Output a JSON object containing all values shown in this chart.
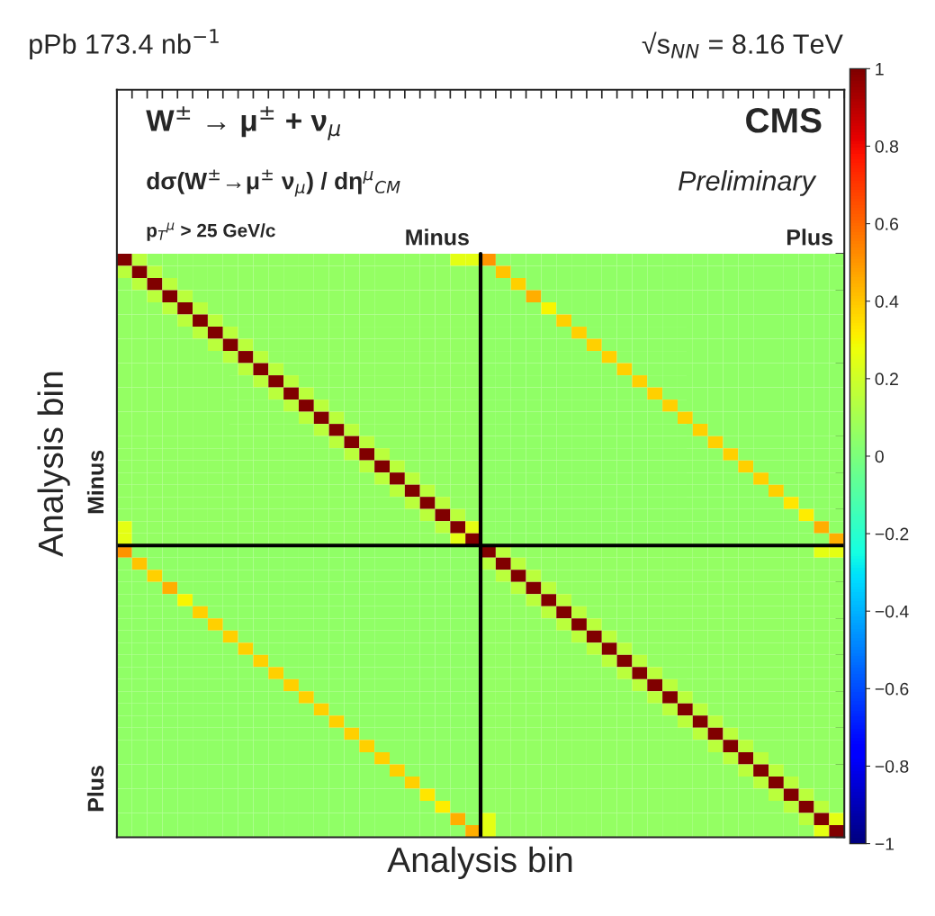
{
  "chart_data": {
    "type": "heatmap",
    "title": "pPb 173.4 nb$^{−1}$",
    "subtitle": "√s$_{NN}$ = 8.16 TeV",
    "xlabel": "Analysis bin",
    "ylabel": "Analysis bin",
    "annotations": [
      "W$^{±}$ → μ$^{±}$ + ν$_{μ}$",
      "dσ(W$^{±}$→μ$^{±}$ ν$_{μ}$) / dη$^{μ}$$_{CM}$",
      "p$_{T}$$^{μ}$ > 25 GeV/c",
      "CMS",
      "Preliminary",
      "Minus",
      "Plus",
      "Minus",
      "Plus"
    ],
    "categories": [
      null,
      null,
      null,
      null,
      null,
      null,
      null,
      null,
      null,
      null,
      null,
      null,
      null,
      null,
      null,
      null,
      null,
      null,
      null,
      null,
      null,
      null,
      null,
      null,
      null,
      null,
      null,
      null,
      null,
      null,
      null,
      null,
      null,
      null,
      null,
      null,
      null,
      null,
      null,
      null,
      null,
      null,
      null,
      null,
      null,
      null,
      null,
      null
    ],
    "y_categories": [
      null,
      null,
      null,
      null,
      null,
      null,
      null,
      null,
      null,
      null,
      null,
      null,
      null,
      null,
      null,
      null,
      null,
      null,
      null,
      null,
      null,
      null,
      null,
      null,
      null,
      null,
      null,
      null,
      null,
      null,
      null,
      null,
      null,
      null,
      null,
      null,
      null,
      null,
      null,
      null,
      null,
      null,
      null,
      null,
      null,
      null,
      null,
      null
    ],
    "clim": [
      -1,
      1
    ],
    "cticks": [
      {
        "value": -1,
        "label": "−1"
      },
      {
        "value": -0.8,
        "label": "−0.8"
      },
      {
        "value": -0.6,
        "label": "−0.6"
      },
      {
        "value": -0.4,
        "label": "−0.4"
      },
      {
        "value": -0.2,
        "label": "−0.2"
      },
      0,
      0.2,
      0.4,
      0.6,
      0.8,
      1
    ],
    "tick_labels": false,
    "cells": [
      [
        1,
        0.15,
        0.06,
        0.06,
        0.06,
        0.06,
        0.06,
        0.06,
        0.06,
        0.06,
        0.06,
        0.06,
        0.06,
        0.06,
        0.06,
        0.06,
        0.06,
        0.06,
        0.06,
        0.06,
        0.06,
        0.06,
        0.25,
        0.25,
        0.5,
        0.05,
        0.05,
        0.05,
        0.05,
        0.05,
        0.05,
        0.05,
        0.05,
        0.05,
        0.05,
        0.05,
        0.05,
        0.05,
        0.05,
        0.05,
        0.05,
        0.05,
        0.05,
        0.05,
        0.05,
        0.05,
        0.05,
        0.05
      ],
      [
        0.15,
        1,
        0.15,
        0.06,
        0.06,
        0.06,
        0.06,
        0.06,
        0.06,
        0.06,
        0.06,
        0.06,
        0.06,
        0.06,
        0.06,
        0.06,
        0.06,
        0.06,
        0.06,
        0.06,
        0.06,
        0.06,
        0.06,
        0.06,
        0.05,
        0.4,
        0.05,
        0.05,
        0.05,
        0.05,
        0.05,
        0.05,
        0.05,
        0.05,
        0.05,
        0.05,
        0.05,
        0.05,
        0.05,
        0.05,
        0.05,
        0.05,
        0.05,
        0.05,
        0.05,
        0.05,
        0.05,
        0.05
      ],
      [
        0.06,
        0.15,
        1,
        0.15,
        0.06,
        0.06,
        0.06,
        0.06,
        0.06,
        0.06,
        0.06,
        0.06,
        0.06,
        0.06,
        0.06,
        0.06,
        0.06,
        0.06,
        0.06,
        0.06,
        0.06,
        0.06,
        0.06,
        0.06,
        0.05,
        0.05,
        0.38,
        0.05,
        0.05,
        0.05,
        0.05,
        0.05,
        0.05,
        0.05,
        0.05,
        0.05,
        0.05,
        0.05,
        0.05,
        0.05,
        0.05,
        0.05,
        0.05,
        0.05,
        0.05,
        0.05,
        0.05,
        0.05
      ],
      [
        0.06,
        0.06,
        0.15,
        1,
        0.15,
        0.06,
        0.06,
        0.06,
        0.06,
        0.06,
        0.06,
        0.06,
        0.06,
        0.06,
        0.06,
        0.06,
        0.06,
        0.06,
        0.06,
        0.06,
        0.06,
        0.06,
        0.06,
        0.06,
        0.05,
        0.05,
        0.05,
        0.45,
        0.05,
        0.05,
        0.05,
        0.05,
        0.05,
        0.05,
        0.05,
        0.05,
        0.05,
        0.05,
        0.05,
        0.05,
        0.05,
        0.05,
        0.05,
        0.05,
        0.05,
        0.05,
        0.05,
        0.05
      ],
      [
        0.06,
        0.06,
        0.06,
        0.15,
        1,
        0.15,
        0.06,
        0.06,
        0.06,
        0.06,
        0.06,
        0.06,
        0.06,
        0.06,
        0.06,
        0.06,
        0.06,
        0.06,
        0.06,
        0.06,
        0.06,
        0.06,
        0.06,
        0.06,
        0.05,
        0.05,
        0.05,
        0.05,
        0.3,
        0.05,
        0.05,
        0.05,
        0.05,
        0.05,
        0.05,
        0.05,
        0.05,
        0.05,
        0.05,
        0.05,
        0.05,
        0.05,
        0.05,
        0.05,
        0.05,
        0.05,
        0.05,
        0.05
      ],
      [
        0.06,
        0.06,
        0.06,
        0.06,
        0.15,
        1,
        0.15,
        0.06,
        0.06,
        0.06,
        0.06,
        0.06,
        0.06,
        0.06,
        0.06,
        0.06,
        0.06,
        0.06,
        0.06,
        0.06,
        0.06,
        0.06,
        0.06,
        0.06,
        0.05,
        0.05,
        0.05,
        0.05,
        0.05,
        0.38,
        0.05,
        0.05,
        0.05,
        0.05,
        0.05,
        0.05,
        0.05,
        0.05,
        0.05,
        0.05,
        0.05,
        0.05,
        0.05,
        0.05,
        0.05,
        0.05,
        0.05,
        0.05
      ],
      [
        0.06,
        0.06,
        0.06,
        0.06,
        0.06,
        0.15,
        1,
        0.15,
        0.06,
        0.06,
        0.06,
        0.06,
        0.06,
        0.06,
        0.06,
        0.06,
        0.06,
        0.06,
        0.06,
        0.06,
        0.06,
        0.06,
        0.06,
        0.06,
        0.05,
        0.05,
        0.05,
        0.05,
        0.05,
        0.05,
        0.38,
        0.05,
        0.05,
        0.05,
        0.05,
        0.05,
        0.05,
        0.05,
        0.05,
        0.05,
        0.05,
        0.05,
        0.05,
        0.05,
        0.05,
        0.05,
        0.05,
        0.05
      ],
      [
        0.06,
        0.06,
        0.06,
        0.06,
        0.06,
        0.06,
        0.15,
        1,
        0.15,
        0.06,
        0.06,
        0.06,
        0.06,
        0.06,
        0.06,
        0.06,
        0.06,
        0.06,
        0.06,
        0.06,
        0.06,
        0.06,
        0.06,
        0.06,
        0.05,
        0.05,
        0.05,
        0.05,
        0.05,
        0.05,
        0.05,
        0.38,
        0.05,
        0.05,
        0.05,
        0.05,
        0.05,
        0.05,
        0.05,
        0.05,
        0.05,
        0.05,
        0.05,
        0.05,
        0.05,
        0.05,
        0.05,
        0.05
      ],
      [
        0.06,
        0.06,
        0.06,
        0.06,
        0.06,
        0.06,
        0.06,
        0.15,
        1,
        0.15,
        0.06,
        0.06,
        0.06,
        0.06,
        0.06,
        0.06,
        0.06,
        0.06,
        0.06,
        0.06,
        0.06,
        0.06,
        0.06,
        0.06,
        0.05,
        0.05,
        0.05,
        0.05,
        0.05,
        0.05,
        0.05,
        0.05,
        0.38,
        0.05,
        0.05,
        0.05,
        0.05,
        0.05,
        0.05,
        0.05,
        0.05,
        0.05,
        0.05,
        0.05,
        0.05,
        0.05,
        0.05,
        0.05
      ],
      [
        0.06,
        0.06,
        0.06,
        0.06,
        0.06,
        0.06,
        0.06,
        0.06,
        0.15,
        1,
        0.15,
        0.06,
        0.06,
        0.06,
        0.06,
        0.06,
        0.06,
        0.06,
        0.06,
        0.06,
        0.06,
        0.06,
        0.06,
        0.06,
        0.05,
        0.05,
        0.05,
        0.05,
        0.05,
        0.05,
        0.05,
        0.05,
        0.05,
        0.38,
        0.05,
        0.05,
        0.05,
        0.05,
        0.05,
        0.05,
        0.05,
        0.05,
        0.05,
        0.05,
        0.05,
        0.05,
        0.05,
        0.05
      ],
      [
        0.06,
        0.06,
        0.06,
        0.06,
        0.06,
        0.06,
        0.06,
        0.06,
        0.06,
        0.15,
        1,
        0.15,
        0.06,
        0.06,
        0.06,
        0.06,
        0.06,
        0.06,
        0.06,
        0.06,
        0.06,
        0.06,
        0.06,
        0.06,
        0.05,
        0.05,
        0.05,
        0.05,
        0.05,
        0.05,
        0.05,
        0.05,
        0.05,
        0.05,
        0.38,
        0.05,
        0.05,
        0.05,
        0.05,
        0.05,
        0.05,
        0.05,
        0.05,
        0.05,
        0.05,
        0.05,
        0.05,
        0.05
      ],
      [
        0.06,
        0.06,
        0.06,
        0.06,
        0.06,
        0.06,
        0.06,
        0.06,
        0.06,
        0.06,
        0.15,
        1,
        0.15,
        0.06,
        0.06,
        0.06,
        0.06,
        0.06,
        0.06,
        0.06,
        0.06,
        0.06,
        0.06,
        0.06,
        0.05,
        0.05,
        0.05,
        0.05,
        0.05,
        0.05,
        0.05,
        0.05,
        0.05,
        0.05,
        0.05,
        0.38,
        0.05,
        0.05,
        0.05,
        0.05,
        0.05,
        0.05,
        0.05,
        0.05,
        0.05,
        0.05,
        0.05,
        0.05
      ],
      [
        0.06,
        0.06,
        0.06,
        0.06,
        0.06,
        0.06,
        0.06,
        0.06,
        0.06,
        0.06,
        0.06,
        0.15,
        1,
        0.15,
        0.06,
        0.06,
        0.06,
        0.06,
        0.06,
        0.06,
        0.06,
        0.06,
        0.06,
        0.06,
        0.05,
        0.05,
        0.05,
        0.05,
        0.05,
        0.05,
        0.05,
        0.05,
        0.05,
        0.05,
        0.05,
        0.05,
        0.38,
        0.05,
        0.05,
        0.05,
        0.05,
        0.05,
        0.05,
        0.05,
        0.05,
        0.05,
        0.05,
        0.05
      ],
      [
        0.06,
        0.06,
        0.06,
        0.06,
        0.06,
        0.06,
        0.06,
        0.06,
        0.06,
        0.06,
        0.06,
        0.06,
        0.15,
        1,
        0.15,
        0.06,
        0.06,
        0.06,
        0.06,
        0.06,
        0.06,
        0.06,
        0.06,
        0.06,
        0.05,
        0.05,
        0.05,
        0.05,
        0.05,
        0.05,
        0.05,
        0.05,
        0.05,
        0.05,
        0.05,
        0.05,
        0.05,
        0.38,
        0.05,
        0.05,
        0.05,
        0.05,
        0.05,
        0.05,
        0.05,
        0.05,
        0.05,
        0.05
      ],
      [
        0.06,
        0.06,
        0.06,
        0.06,
        0.06,
        0.06,
        0.06,
        0.06,
        0.06,
        0.06,
        0.06,
        0.06,
        0.06,
        0.15,
        1,
        0.15,
        0.06,
        0.06,
        0.06,
        0.06,
        0.06,
        0.06,
        0.06,
        0.06,
        0.05,
        0.05,
        0.05,
        0.05,
        0.05,
        0.05,
        0.05,
        0.05,
        0.05,
        0.05,
        0.05,
        0.05,
        0.05,
        0.05,
        0.38,
        0.05,
        0.05,
        0.05,
        0.05,
        0.05,
        0.05,
        0.05,
        0.05,
        0.05
      ],
      [
        0.06,
        0.06,
        0.06,
        0.06,
        0.06,
        0.06,
        0.06,
        0.06,
        0.06,
        0.06,
        0.06,
        0.06,
        0.06,
        0.06,
        0.15,
        1,
        0.15,
        0.06,
        0.06,
        0.06,
        0.06,
        0.06,
        0.06,
        0.06,
        0.05,
        0.05,
        0.05,
        0.05,
        0.05,
        0.05,
        0.05,
        0.05,
        0.05,
        0.05,
        0.05,
        0.05,
        0.05,
        0.05,
        0.05,
        0.38,
        0.05,
        0.05,
        0.05,
        0.05,
        0.05,
        0.05,
        0.05,
        0.05
      ],
      [
        0.06,
        0.06,
        0.06,
        0.06,
        0.06,
        0.06,
        0.06,
        0.06,
        0.06,
        0.06,
        0.06,
        0.06,
        0.06,
        0.06,
        0.06,
        0.15,
        1,
        0.15,
        0.06,
        0.06,
        0.06,
        0.06,
        0.06,
        0.06,
        0.05,
        0.05,
        0.05,
        0.05,
        0.05,
        0.05,
        0.05,
        0.05,
        0.05,
        0.05,
        0.05,
        0.05,
        0.05,
        0.05,
        0.05,
        0.05,
        0.38,
        0.05,
        0.05,
        0.05,
        0.05,
        0.05,
        0.05,
        0.05
      ],
      [
        0.06,
        0.06,
        0.06,
        0.06,
        0.06,
        0.06,
        0.06,
        0.06,
        0.06,
        0.06,
        0.06,
        0.06,
        0.06,
        0.06,
        0.06,
        0.06,
        0.15,
        1,
        0.15,
        0.06,
        0.06,
        0.06,
        0.06,
        0.06,
        0.05,
        0.05,
        0.05,
        0.05,
        0.05,
        0.05,
        0.05,
        0.05,
        0.05,
        0.05,
        0.05,
        0.05,
        0.05,
        0.05,
        0.05,
        0.05,
        0.05,
        0.38,
        0.05,
        0.05,
        0.05,
        0.05,
        0.05,
        0.05
      ],
      [
        0.06,
        0.06,
        0.06,
        0.06,
        0.06,
        0.06,
        0.06,
        0.06,
        0.06,
        0.06,
        0.06,
        0.06,
        0.06,
        0.06,
        0.06,
        0.06,
        0.06,
        0.15,
        1,
        0.15,
        0.06,
        0.06,
        0.06,
        0.06,
        0.05,
        0.05,
        0.05,
        0.05,
        0.05,
        0.05,
        0.05,
        0.05,
        0.05,
        0.05,
        0.05,
        0.05,
        0.05,
        0.05,
        0.05,
        0.05,
        0.05,
        0.05,
        0.38,
        0.05,
        0.05,
        0.05,
        0.05,
        0.05
      ],
      [
        0.06,
        0.06,
        0.06,
        0.06,
        0.06,
        0.06,
        0.06,
        0.06,
        0.06,
        0.06,
        0.06,
        0.06,
        0.06,
        0.06,
        0.06,
        0.06,
        0.06,
        0.06,
        0.15,
        1,
        0.15,
        0.06,
        0.06,
        0.06,
        0.05,
        0.05,
        0.05,
        0.05,
        0.05,
        0.05,
        0.05,
        0.05,
        0.05,
        0.05,
        0.05,
        0.05,
        0.05,
        0.05,
        0.05,
        0.05,
        0.05,
        0.05,
        0.05,
        0.38,
        0.05,
        0.05,
        0.05,
        0.05
      ],
      [
        0.06,
        0.06,
        0.06,
        0.06,
        0.06,
        0.06,
        0.06,
        0.06,
        0.06,
        0.06,
        0.06,
        0.06,
        0.06,
        0.06,
        0.06,
        0.06,
        0.06,
        0.06,
        0.06,
        0.15,
        1,
        0.15,
        0.06,
        0.06,
        0.05,
        0.05,
        0.05,
        0.05,
        0.05,
        0.05,
        0.05,
        0.05,
        0.05,
        0.05,
        0.05,
        0.05,
        0.05,
        0.05,
        0.05,
        0.05,
        0.05,
        0.05,
        0.05,
        0.05,
        0.33,
        0.05,
        0.05,
        0.05
      ],
      [
        0.06,
        0.06,
        0.06,
        0.06,
        0.06,
        0.06,
        0.06,
        0.06,
        0.06,
        0.06,
        0.06,
        0.06,
        0.06,
        0.06,
        0.06,
        0.06,
        0.06,
        0.06,
        0.06,
        0.06,
        0.15,
        1,
        0.15,
        0.06,
        0.05,
        0.05,
        0.05,
        0.05,
        0.05,
        0.05,
        0.05,
        0.05,
        0.05,
        0.05,
        0.05,
        0.05,
        0.05,
        0.05,
        0.05,
        0.05,
        0.05,
        0.05,
        0.05,
        0.05,
        0.05,
        0.32,
        0.05,
        0.05
      ],
      [
        0.25,
        0.06,
        0.06,
        0.06,
        0.06,
        0.06,
        0.06,
        0.06,
        0.06,
        0.06,
        0.06,
        0.06,
        0.06,
        0.06,
        0.06,
        0.06,
        0.06,
        0.06,
        0.06,
        0.06,
        0.06,
        0.15,
        1,
        0.25,
        0.05,
        0.05,
        0.05,
        0.05,
        0.05,
        0.05,
        0.05,
        0.05,
        0.05,
        0.05,
        0.05,
        0.05,
        0.05,
        0.05,
        0.05,
        0.05,
        0.05,
        0.05,
        0.05,
        0.05,
        0.05,
        0.05,
        0.45,
        0.05
      ],
      [
        0.25,
        0.06,
        0.06,
        0.06,
        0.06,
        0.06,
        0.06,
        0.06,
        0.06,
        0.06,
        0.06,
        0.06,
        0.06,
        0.06,
        0.06,
        0.06,
        0.06,
        0.06,
        0.06,
        0.06,
        0.06,
        0.06,
        0.25,
        1,
        0.05,
        0.05,
        0.05,
        0.05,
        0.05,
        0.05,
        0.05,
        0.05,
        0.05,
        0.05,
        0.05,
        0.05,
        0.05,
        0.05,
        0.05,
        0.05,
        0.05,
        0.05,
        0.05,
        0.05,
        0.05,
        0.05,
        0.05,
        0.45
      ],
      [
        0.5,
        0.05,
        0.05,
        0.05,
        0.05,
        0.05,
        0.05,
        0.05,
        0.05,
        0.05,
        0.05,
        0.05,
        0.05,
        0.05,
        0.05,
        0.05,
        0.05,
        0.05,
        0.05,
        0.05,
        0.05,
        0.05,
        0.05,
        0.05,
        1,
        0.15,
        0.06,
        0.06,
        0.06,
        0.06,
        0.06,
        0.06,
        0.06,
        0.06,
        0.06,
        0.06,
        0.06,
        0.06,
        0.06,
        0.06,
        0.06,
        0.06,
        0.06,
        0.06,
        0.06,
        0.06,
        0.25,
        0.25
      ],
      [
        0.05,
        0.4,
        0.05,
        0.05,
        0.05,
        0.05,
        0.05,
        0.05,
        0.05,
        0.05,
        0.05,
        0.05,
        0.05,
        0.05,
        0.05,
        0.05,
        0.05,
        0.05,
        0.05,
        0.05,
        0.05,
        0.05,
        0.05,
        0.05,
        0.15,
        1,
        0.15,
        0.06,
        0.06,
        0.06,
        0.06,
        0.06,
        0.06,
        0.06,
        0.06,
        0.06,
        0.06,
        0.06,
        0.06,
        0.06,
        0.06,
        0.06,
        0.06,
        0.06,
        0.06,
        0.06,
        0.06,
        0.06
      ],
      [
        0.05,
        0.05,
        0.38,
        0.05,
        0.05,
        0.05,
        0.05,
        0.05,
        0.05,
        0.05,
        0.05,
        0.05,
        0.05,
        0.05,
        0.05,
        0.05,
        0.05,
        0.05,
        0.05,
        0.05,
        0.05,
        0.05,
        0.05,
        0.05,
        0.06,
        0.15,
        1,
        0.15,
        0.06,
        0.06,
        0.06,
        0.06,
        0.06,
        0.06,
        0.06,
        0.06,
        0.06,
        0.06,
        0.06,
        0.06,
        0.06,
        0.06,
        0.06,
        0.06,
        0.06,
        0.06,
        0.06,
        0.06
      ],
      [
        0.05,
        0.05,
        0.05,
        0.45,
        0.05,
        0.05,
        0.05,
        0.05,
        0.05,
        0.05,
        0.05,
        0.05,
        0.05,
        0.05,
        0.05,
        0.05,
        0.05,
        0.05,
        0.05,
        0.05,
        0.05,
        0.05,
        0.05,
        0.05,
        0.06,
        0.06,
        0.15,
        1,
        0.15,
        0.06,
        0.06,
        0.06,
        0.06,
        0.06,
        0.06,
        0.06,
        0.06,
        0.06,
        0.06,
        0.06,
        0.06,
        0.06,
        0.06,
        0.06,
        0.06,
        0.06,
        0.06,
        0.06
      ],
      [
        0.05,
        0.05,
        0.05,
        0.05,
        0.3,
        0.05,
        0.05,
        0.05,
        0.05,
        0.05,
        0.05,
        0.05,
        0.05,
        0.05,
        0.05,
        0.05,
        0.05,
        0.05,
        0.05,
        0.05,
        0.05,
        0.05,
        0.05,
        0.05,
        0.06,
        0.06,
        0.06,
        0.15,
        1,
        0.15,
        0.06,
        0.06,
        0.06,
        0.06,
        0.06,
        0.06,
        0.06,
        0.06,
        0.06,
        0.06,
        0.06,
        0.06,
        0.06,
        0.06,
        0.06,
        0.06,
        0.06,
        0.06
      ],
      [
        0.05,
        0.05,
        0.05,
        0.05,
        0.05,
        0.38,
        0.05,
        0.05,
        0.05,
        0.05,
        0.05,
        0.05,
        0.05,
        0.05,
        0.05,
        0.05,
        0.05,
        0.05,
        0.05,
        0.05,
        0.05,
        0.05,
        0.05,
        0.05,
        0.06,
        0.06,
        0.06,
        0.06,
        0.15,
        1,
        0.15,
        0.06,
        0.06,
        0.06,
        0.06,
        0.06,
        0.06,
        0.06,
        0.06,
        0.06,
        0.06,
        0.06,
        0.06,
        0.06,
        0.06,
        0.06,
        0.06,
        0.06
      ],
      [
        0.05,
        0.05,
        0.05,
        0.05,
        0.05,
        0.05,
        0.38,
        0.05,
        0.05,
        0.05,
        0.05,
        0.05,
        0.05,
        0.05,
        0.05,
        0.05,
        0.05,
        0.05,
        0.05,
        0.05,
        0.05,
        0.05,
        0.05,
        0.05,
        0.06,
        0.06,
        0.06,
        0.06,
        0.06,
        0.15,
        1,
        0.15,
        0.06,
        0.06,
        0.06,
        0.06,
        0.06,
        0.06,
        0.06,
        0.06,
        0.06,
        0.06,
        0.06,
        0.06,
        0.06,
        0.06,
        0.06,
        0.06
      ],
      [
        0.05,
        0.05,
        0.05,
        0.05,
        0.05,
        0.05,
        0.05,
        0.38,
        0.05,
        0.05,
        0.05,
        0.05,
        0.05,
        0.05,
        0.05,
        0.05,
        0.05,
        0.05,
        0.05,
        0.05,
        0.05,
        0.05,
        0.05,
        0.05,
        0.06,
        0.06,
        0.06,
        0.06,
        0.06,
        0.06,
        0.15,
        1,
        0.15,
        0.06,
        0.06,
        0.06,
        0.06,
        0.06,
        0.06,
        0.06,
        0.06,
        0.06,
        0.06,
        0.06,
        0.06,
        0.06,
        0.06,
        0.06
      ],
      [
        0.05,
        0.05,
        0.05,
        0.05,
        0.05,
        0.05,
        0.05,
        0.05,
        0.38,
        0.05,
        0.05,
        0.05,
        0.05,
        0.05,
        0.05,
        0.05,
        0.05,
        0.05,
        0.05,
        0.05,
        0.05,
        0.05,
        0.05,
        0.05,
        0.06,
        0.06,
        0.06,
        0.06,
        0.06,
        0.06,
        0.06,
        0.15,
        1,
        0.15,
        0.06,
        0.06,
        0.06,
        0.06,
        0.06,
        0.06,
        0.06,
        0.06,
        0.06,
        0.06,
        0.06,
        0.06,
        0.06,
        0.06
      ],
      [
        0.05,
        0.05,
        0.05,
        0.05,
        0.05,
        0.05,
        0.05,
        0.05,
        0.05,
        0.38,
        0.05,
        0.05,
        0.05,
        0.05,
        0.05,
        0.05,
        0.05,
        0.05,
        0.05,
        0.05,
        0.05,
        0.05,
        0.05,
        0.05,
        0.06,
        0.06,
        0.06,
        0.06,
        0.06,
        0.06,
        0.06,
        0.06,
        0.15,
        1,
        0.15,
        0.06,
        0.06,
        0.06,
        0.06,
        0.06,
        0.06,
        0.06,
        0.06,
        0.06,
        0.06,
        0.06,
        0.06,
        0.06
      ],
      [
        0.05,
        0.05,
        0.05,
        0.05,
        0.05,
        0.05,
        0.05,
        0.05,
        0.05,
        0.05,
        0.38,
        0.05,
        0.05,
        0.05,
        0.05,
        0.05,
        0.05,
        0.05,
        0.05,
        0.05,
        0.05,
        0.05,
        0.05,
        0.05,
        0.06,
        0.06,
        0.06,
        0.06,
        0.06,
        0.06,
        0.06,
        0.06,
        0.06,
        0.15,
        1,
        0.15,
        0.06,
        0.06,
        0.06,
        0.06,
        0.06,
        0.06,
        0.06,
        0.06,
        0.06,
        0.06,
        0.06,
        0.06
      ],
      [
        0.05,
        0.05,
        0.05,
        0.05,
        0.05,
        0.05,
        0.05,
        0.05,
        0.05,
        0.05,
        0.05,
        0.38,
        0.05,
        0.05,
        0.05,
        0.05,
        0.05,
        0.05,
        0.05,
        0.05,
        0.05,
        0.05,
        0.05,
        0.05,
        0.06,
        0.06,
        0.06,
        0.06,
        0.06,
        0.06,
        0.06,
        0.06,
        0.06,
        0.06,
        0.15,
        1,
        0.15,
        0.06,
        0.06,
        0.06,
        0.06,
        0.06,
        0.06,
        0.06,
        0.06,
        0.06,
        0.06,
        0.06
      ],
      [
        0.05,
        0.05,
        0.05,
        0.05,
        0.05,
        0.05,
        0.05,
        0.05,
        0.05,
        0.05,
        0.05,
        0.05,
        0.38,
        0.05,
        0.05,
        0.05,
        0.05,
        0.05,
        0.05,
        0.05,
        0.05,
        0.05,
        0.05,
        0.05,
        0.06,
        0.06,
        0.06,
        0.06,
        0.06,
        0.06,
        0.06,
        0.06,
        0.06,
        0.06,
        0.06,
        0.15,
        1,
        0.15,
        0.06,
        0.06,
        0.06,
        0.06,
        0.06,
        0.06,
        0.06,
        0.06,
        0.06,
        0.06
      ],
      [
        0.05,
        0.05,
        0.05,
        0.05,
        0.05,
        0.05,
        0.05,
        0.05,
        0.05,
        0.05,
        0.05,
        0.05,
        0.05,
        0.38,
        0.05,
        0.05,
        0.05,
        0.05,
        0.05,
        0.05,
        0.05,
        0.05,
        0.05,
        0.05,
        0.06,
        0.06,
        0.06,
        0.06,
        0.06,
        0.06,
        0.06,
        0.06,
        0.06,
        0.06,
        0.06,
        0.06,
        0.15,
        1,
        0.15,
        0.06,
        0.06,
        0.06,
        0.06,
        0.06,
        0.06,
        0.06,
        0.06,
        0.06
      ],
      [
        0.05,
        0.05,
        0.05,
        0.05,
        0.05,
        0.05,
        0.05,
        0.05,
        0.05,
        0.05,
        0.05,
        0.05,
        0.05,
        0.05,
        0.38,
        0.05,
        0.05,
        0.05,
        0.05,
        0.05,
        0.05,
        0.05,
        0.05,
        0.05,
        0.06,
        0.06,
        0.06,
        0.06,
        0.06,
        0.06,
        0.06,
        0.06,
        0.06,
        0.06,
        0.06,
        0.06,
        0.06,
        0.15,
        1,
        0.15,
        0.06,
        0.06,
        0.06,
        0.06,
        0.06,
        0.06,
        0.06,
        0.06
      ],
      [
        0.05,
        0.05,
        0.05,
        0.05,
        0.05,
        0.05,
        0.05,
        0.05,
        0.05,
        0.05,
        0.05,
        0.05,
        0.05,
        0.05,
        0.05,
        0.38,
        0.05,
        0.05,
        0.05,
        0.05,
        0.05,
        0.05,
        0.05,
        0.05,
        0.06,
        0.06,
        0.06,
        0.06,
        0.06,
        0.06,
        0.06,
        0.06,
        0.06,
        0.06,
        0.06,
        0.06,
        0.06,
        0.06,
        0.15,
        1,
        0.15,
        0.06,
        0.06,
        0.06,
        0.06,
        0.06,
        0.06,
        0.06
      ],
      [
        0.05,
        0.05,
        0.05,
        0.05,
        0.05,
        0.05,
        0.05,
        0.05,
        0.05,
        0.05,
        0.05,
        0.05,
        0.05,
        0.05,
        0.05,
        0.05,
        0.38,
        0.05,
        0.05,
        0.05,
        0.05,
        0.05,
        0.05,
        0.05,
        0.06,
        0.06,
        0.06,
        0.06,
        0.06,
        0.06,
        0.06,
        0.06,
        0.06,
        0.06,
        0.06,
        0.06,
        0.06,
        0.06,
        0.06,
        0.15,
        1,
        0.15,
        0.06,
        0.06,
        0.06,
        0.06,
        0.06,
        0.06
      ],
      [
        0.05,
        0.05,
        0.05,
        0.05,
        0.05,
        0.05,
        0.05,
        0.05,
        0.05,
        0.05,
        0.05,
        0.05,
        0.05,
        0.05,
        0.05,
        0.05,
        0.05,
        0.38,
        0.05,
        0.05,
        0.05,
        0.05,
        0.05,
        0.05,
        0.06,
        0.06,
        0.06,
        0.06,
        0.06,
        0.06,
        0.06,
        0.06,
        0.06,
        0.06,
        0.06,
        0.06,
        0.06,
        0.06,
        0.06,
        0.06,
        0.15,
        1,
        0.15,
        0.06,
        0.06,
        0.06,
        0.06,
        0.06
      ],
      [
        0.05,
        0.05,
        0.05,
        0.05,
        0.05,
        0.05,
        0.05,
        0.05,
        0.05,
        0.05,
        0.05,
        0.05,
        0.05,
        0.05,
        0.05,
        0.05,
        0.05,
        0.05,
        0.38,
        0.05,
        0.05,
        0.05,
        0.05,
        0.05,
        0.06,
        0.06,
        0.06,
        0.06,
        0.06,
        0.06,
        0.06,
        0.06,
        0.06,
        0.06,
        0.06,
        0.06,
        0.06,
        0.06,
        0.06,
        0.06,
        0.06,
        0.15,
        1,
        0.15,
        0.06,
        0.06,
        0.06,
        0.06
      ],
      [
        0.05,
        0.05,
        0.05,
        0.05,
        0.05,
        0.05,
        0.05,
        0.05,
        0.05,
        0.05,
        0.05,
        0.05,
        0.05,
        0.05,
        0.05,
        0.05,
        0.05,
        0.05,
        0.05,
        0.38,
        0.05,
        0.05,
        0.05,
        0.05,
        0.06,
        0.06,
        0.06,
        0.06,
        0.06,
        0.06,
        0.06,
        0.06,
        0.06,
        0.06,
        0.06,
        0.06,
        0.06,
        0.06,
        0.06,
        0.06,
        0.06,
        0.06,
        0.15,
        1,
        0.15,
        0.06,
        0.06,
        0.06
      ],
      [
        0.05,
        0.05,
        0.05,
        0.05,
        0.05,
        0.05,
        0.05,
        0.05,
        0.05,
        0.05,
        0.05,
        0.05,
        0.05,
        0.05,
        0.05,
        0.05,
        0.05,
        0.05,
        0.05,
        0.05,
        0.33,
        0.05,
        0.05,
        0.05,
        0.06,
        0.06,
        0.06,
        0.06,
        0.06,
        0.06,
        0.06,
        0.06,
        0.06,
        0.06,
        0.06,
        0.06,
        0.06,
        0.06,
        0.06,
        0.06,
        0.06,
        0.06,
        0.06,
        0.15,
        1,
        0.15,
        0.06,
        0.06
      ],
      [
        0.05,
        0.05,
        0.05,
        0.05,
        0.05,
        0.05,
        0.05,
        0.05,
        0.05,
        0.05,
        0.05,
        0.05,
        0.05,
        0.05,
        0.05,
        0.05,
        0.05,
        0.05,
        0.05,
        0.05,
        0.05,
        0.32,
        0.05,
        0.05,
        0.06,
        0.06,
        0.06,
        0.06,
        0.06,
        0.06,
        0.06,
        0.06,
        0.06,
        0.06,
        0.06,
        0.06,
        0.06,
        0.06,
        0.06,
        0.06,
        0.06,
        0.06,
        0.06,
        0.06,
        0.15,
        1,
        0.15,
        0.06
      ],
      [
        0.05,
        0.05,
        0.05,
        0.05,
        0.05,
        0.05,
        0.05,
        0.05,
        0.05,
        0.05,
        0.05,
        0.05,
        0.05,
        0.05,
        0.05,
        0.05,
        0.05,
        0.05,
        0.05,
        0.05,
        0.05,
        0.05,
        0.45,
        0.05,
        0.25,
        0.06,
        0.06,
        0.06,
        0.06,
        0.06,
        0.06,
        0.06,
        0.06,
        0.06,
        0.06,
        0.06,
        0.06,
        0.06,
        0.06,
        0.06,
        0.06,
        0.06,
        0.06,
        0.06,
        0.06,
        0.15,
        1,
        0.25
      ],
      [
        0.05,
        0.05,
        0.05,
        0.05,
        0.05,
        0.05,
        0.05,
        0.05,
        0.05,
        0.05,
        0.05,
        0.05,
        0.05,
        0.05,
        0.05,
        0.05,
        0.05,
        0.05,
        0.05,
        0.05,
        0.05,
        0.05,
        0.05,
        0.45,
        0.25,
        0.06,
        0.06,
        0.06,
        0.06,
        0.06,
        0.06,
        0.06,
        0.06,
        0.06,
        0.06,
        0.06,
        0.06,
        0.06,
        0.06,
        0.06,
        0.06,
        0.06,
        0.06,
        0.06,
        0.06,
        0.06,
        0.25,
        1
      ]
    ]
  }
}
